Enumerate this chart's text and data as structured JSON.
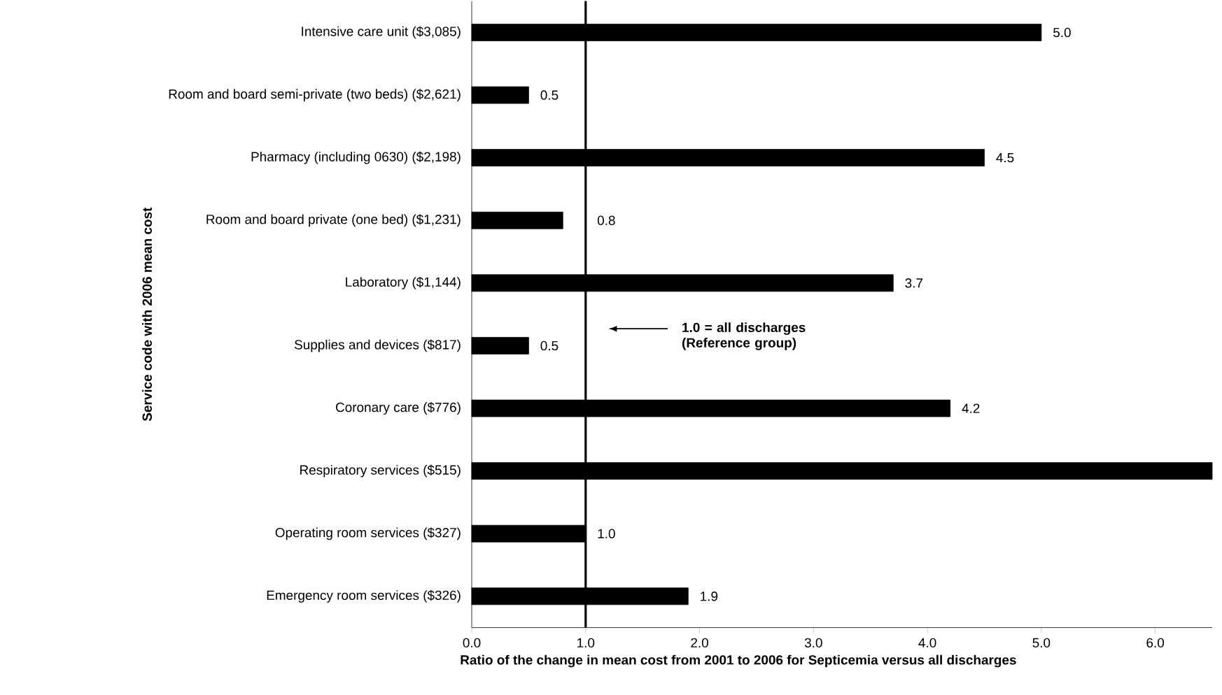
{
  "chart_data": {
    "type": "bar",
    "orientation": "horizontal",
    "categories": [
      "Intensive care unit ($3,085)",
      "Room and board semi-private (two beds) ($2,621)",
      "Pharmacy (including 0630) ($2,198)",
      "Room and board private (one bed) ($1,231)",
      "Laboratory ($1,144)",
      "Supplies and devices ($817)",
      "Coronary care ($776)",
      "Respiratory services ($515)",
      "Operating room services ($327)",
      "Emergency room services ($326)"
    ],
    "values": [
      5.0,
      0.5,
      4.5,
      0.8,
      3.7,
      0.5,
      4.2,
      6.5,
      1.0,
      1.9
    ],
    "value_labels": [
      "5.0",
      "0.5",
      "4.5",
      "0.8",
      "3.7",
      "0.5",
      "4.2",
      null,
      "1.0",
      "1.9"
    ],
    "color": "#000000",
    "xlim": [
      0,
      6.5
    ],
    "xticks": [
      {
        "value": 0,
        "label": "0.0"
      },
      {
        "value": 1,
        "label": "1.0"
      },
      {
        "value": 2,
        "label": "2.0"
      },
      {
        "value": 3,
        "label": "3.0"
      },
      {
        "value": 4,
        "label": "4.0"
      },
      {
        "value": 5,
        "label": "5.0"
      },
      {
        "value": 6,
        "label": "6.0"
      }
    ],
    "xlabel": "Ratio of the change in mean cost from 2001 to 2006 for Septicemia versus all discharges",
    "ylabel": "Service code with 2006 mean cost",
    "ref_lines": [
      {
        "axis": "x",
        "value": 1,
        "label": "1.0 = all discharges (Reference group)"
      }
    ]
  }
}
